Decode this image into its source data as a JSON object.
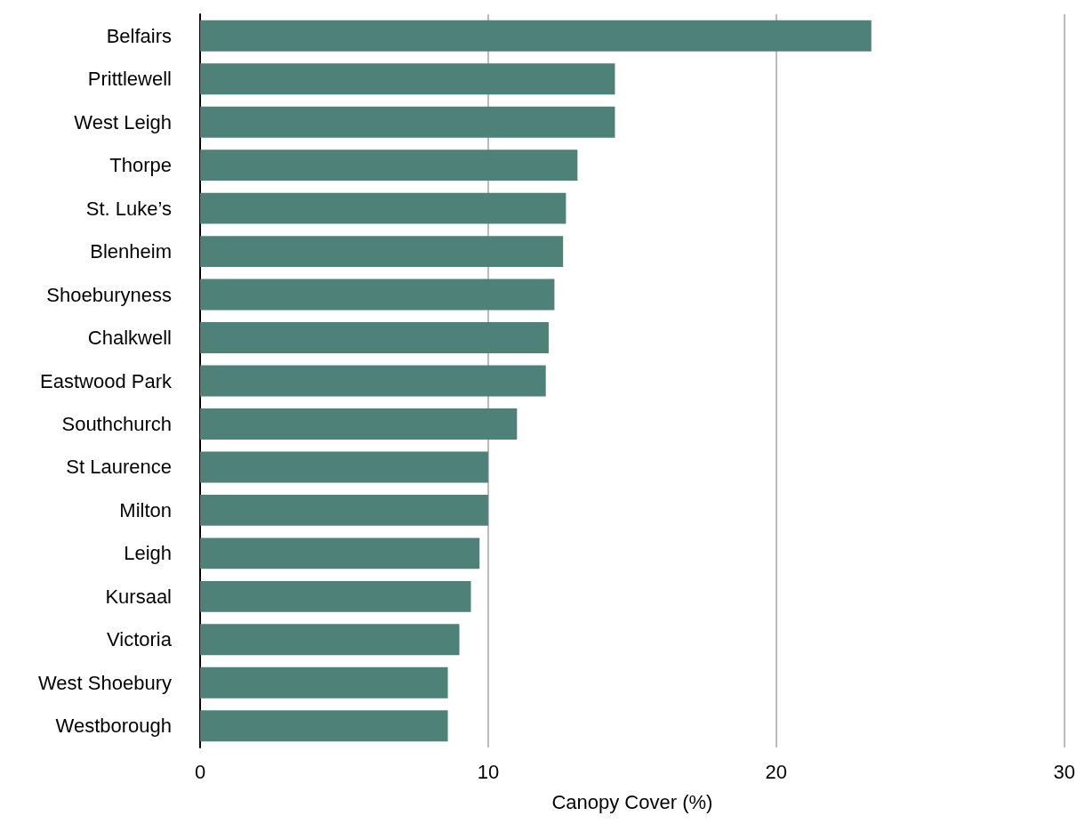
{
  "chart_data": {
    "type": "bar",
    "orientation": "horizontal",
    "xlabel": "Canopy Cover (%)",
    "categories": [
      "Belfairs",
      "Prittlewell",
      "West Leigh",
      "Thorpe",
      "St. Luke’s",
      "Blenheim",
      "Shoeburyness",
      "Chalkwell",
      "Eastwood Park",
      "Southchurch",
      "St Laurence",
      "Milton",
      "Leigh",
      "Kursaal",
      "Victoria",
      "West Shoebury",
      "Westborough"
    ],
    "values": [
      23.3,
      14.4,
      14.4,
      13.1,
      12.7,
      12.6,
      12.3,
      12.1,
      12.0,
      11.0,
      10.0,
      10.0,
      9.7,
      9.4,
      9.0,
      8.6,
      8.6
    ],
    "color": "#4e8278",
    "xlim": [
      0,
      30
    ],
    "xticks": [
      0,
      10,
      20,
      30
    ],
    "grid": "x"
  }
}
